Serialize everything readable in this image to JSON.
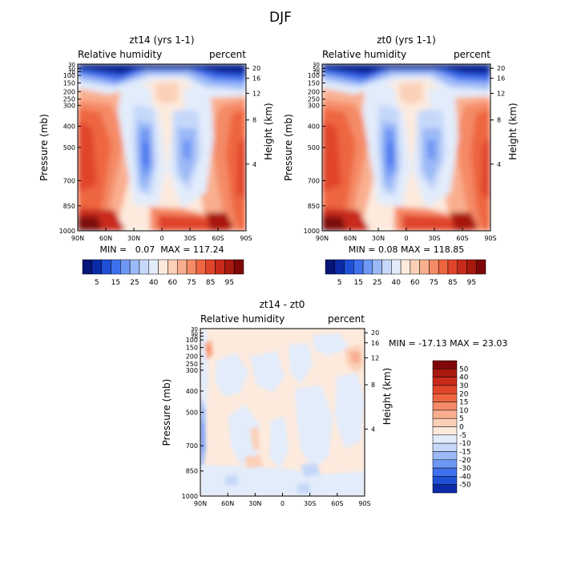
{
  "figure_title": "DJF",
  "colors": {
    "blues": [
      "#061577",
      "#0a2ba8",
      "#1e4fd6",
      "#3f70ee",
      "#6f97f4",
      "#9bb9f7",
      "#c6d8f9",
      "#e2ecfb"
    ],
    "reds": [
      "#fdeadd",
      "#fbd0b7",
      "#f9af8f",
      "#f58a66",
      "#ee6640",
      "#e0442a",
      "#c82b1c",
      "#a8190f",
      "#7e0808"
    ]
  },
  "chart_data": [
    {
      "id": "zt14",
      "type": "contour",
      "title": "zt14 (yrs 1-1)",
      "left_label": "Relative humidity",
      "right_label": "percent",
      "ylabel": "Pressure (mb)",
      "ylabel_right": "Height (km)",
      "x_ticks": [
        "90N",
        "60N",
        "30N",
        "0",
        "30S",
        "60S",
        "90S"
      ],
      "y_ticks": [
        "30",
        "50",
        "70",
        "100",
        "150",
        "200",
        "250",
        "300",
        "400",
        "500",
        "700",
        "850",
        "1000"
      ],
      "height_ticks": [
        "20",
        "16",
        "12",
        "8",
        "4"
      ],
      "stats": "MIN =   0.07  MAX = 117.24",
      "colorbar_labels": [
        "5",
        "15",
        "25",
        "40",
        "60",
        "75",
        "85",
        "95"
      ]
    },
    {
      "id": "zt0",
      "type": "contour",
      "title": "zt0 (yrs 1-1)",
      "left_label": "Relative humidity",
      "right_label": "percent",
      "ylabel": "Pressure (mb)",
      "ylabel_right": "Height (km)",
      "x_ticks": [
        "90N",
        "60N",
        "30N",
        "0",
        "30S",
        "60S",
        "90S"
      ],
      "y_ticks": [
        "30",
        "50",
        "70",
        "100",
        "150",
        "200",
        "250",
        "300",
        "400",
        "500",
        "700",
        "850",
        "1000"
      ],
      "height_ticks": [
        "20",
        "16",
        "12",
        "8",
        "4"
      ],
      "stats": "MIN =   0.08  MAX = 118.85",
      "colorbar_labels": [
        "5",
        "15",
        "25",
        "40",
        "60",
        "75",
        "85",
        "95"
      ]
    },
    {
      "id": "diff",
      "type": "contour",
      "title": "zt14 - zt0",
      "left_label": "Relative humidity",
      "right_label": "percent",
      "ylabel": "Pressure (mb)",
      "ylabel_right": "Height (km)",
      "x_ticks": [
        "90N",
        "60N",
        "30N",
        "0",
        "30S",
        "60S",
        "90S"
      ],
      "y_ticks": [
        "30",
        "50",
        "70",
        "100",
        "150",
        "200",
        "250",
        "300",
        "400",
        "500",
        "700",
        "850",
        "1000"
      ],
      "height_ticks": [
        "20",
        "16",
        "12",
        "8",
        "4"
      ],
      "stats": "MIN = -17.13  MAX =  23.03",
      "colorbar_labels": [
        "50",
        "40",
        "30",
        "20",
        "15",
        "10",
        "5",
        "0",
        "-5",
        "-10",
        "-15",
        "-20",
        "-30",
        "-40",
        "-50"
      ]
    }
  ]
}
